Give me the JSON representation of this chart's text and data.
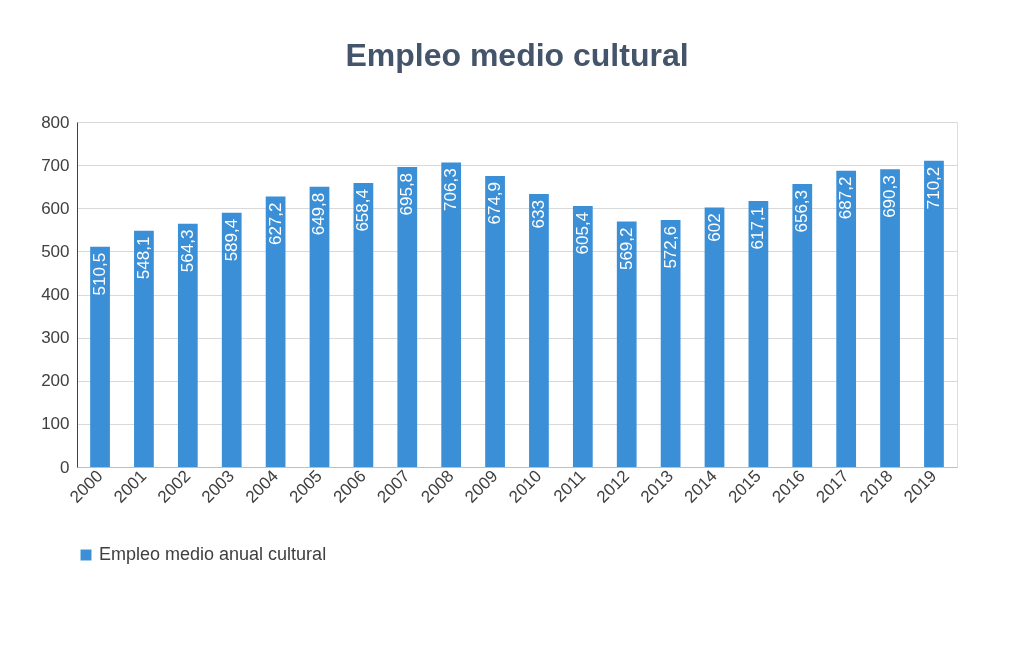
{
  "chart_data": {
    "type": "bar",
    "title": "Empleo medio cultural",
    "categories": [
      "2000",
      "2001",
      "2002",
      "2003",
      "2004",
      "2005",
      "2006",
      "2007",
      "2008",
      "2009",
      "2010",
      "2011",
      "2012",
      "2013",
      "2014",
      "2015",
      "2016",
      "2017",
      "2018",
      "2019"
    ],
    "series": [
      {
        "name": "Empleo medio anual cultural",
        "color": "#3a8fd6",
        "values": [
          510.5,
          548.1,
          564.3,
          589.4,
          627.2,
          649.8,
          658.4,
          695.8,
          706.3,
          674.9,
          633,
          605.4,
          569.2,
          572.6,
          602,
          617.1,
          656.3,
          687.2,
          690.3,
          710.2
        ],
        "value_labels": [
          "510,5",
          "548,1",
          "564,3",
          "589,4",
          "627,2",
          "649,8",
          "658,4",
          "695,8",
          "706,3",
          "674,9",
          "633",
          "605,4",
          "569,2",
          "572,6",
          "602",
          "617,1",
          "656,3",
          "687,2",
          "690,3",
          "710,2"
        ]
      }
    ],
    "ylim": [
      0,
      800
    ],
    "yticks": [
      0,
      100,
      200,
      300,
      400,
      500,
      600,
      700,
      800
    ],
    "grid": "y",
    "legend": "bottom"
  }
}
